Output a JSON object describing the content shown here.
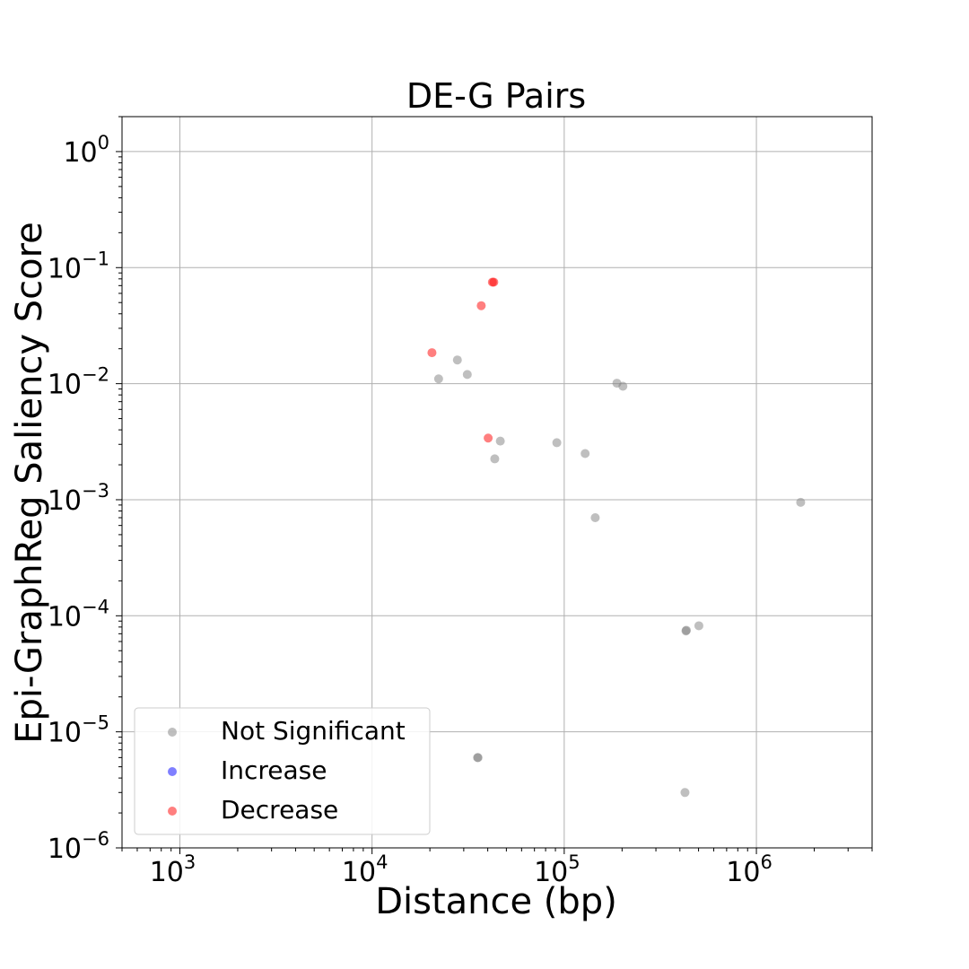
{
  "chart_data": {
    "type": "scatter",
    "title": "DE-G Pairs",
    "xlabel": "Distance (bp)",
    "ylabel": "Epi-GraphReg Saliency Score",
    "xscale": "log",
    "yscale": "log",
    "xlim": [
      500,
      4000000
    ],
    "ylim": [
      1e-06,
      2
    ],
    "grid": true,
    "legend_position": "lower-left",
    "x_ticks": [
      {
        "value": 1000,
        "base": "10",
        "exp": "3"
      },
      {
        "value": 10000,
        "base": "10",
        "exp": "4"
      },
      {
        "value": 100000,
        "base": "10",
        "exp": "5"
      },
      {
        "value": 1000000,
        "base": "10",
        "exp": "6"
      }
    ],
    "y_ticks": [
      {
        "value": 1,
        "base": "10",
        "exp": "0"
      },
      {
        "value": 0.1,
        "base": "10",
        "exp": "−1"
      },
      {
        "value": 0.01,
        "base": "10",
        "exp": "−2"
      },
      {
        "value": 0.001,
        "base": "10",
        "exp": "−3"
      },
      {
        "value": 0.0001,
        "base": "10",
        "exp": "−4"
      },
      {
        "value": 1e-05,
        "base": "10",
        "exp": "−5"
      },
      {
        "value": 1e-06,
        "base": "10",
        "exp": "−6"
      }
    ],
    "series": [
      {
        "name": "Not Significant",
        "color": "#808080",
        "points": [
          [
            27800,
            0.016
          ],
          [
            22200,
            0.011
          ],
          [
            31300,
            0.012
          ],
          [
            188000,
            0.0101
          ],
          [
            202000,
            0.0095
          ],
          [
            46500,
            0.0032
          ],
          [
            91500,
            0.0031
          ],
          [
            128500,
            0.0025
          ],
          [
            43500,
            0.00225
          ],
          [
            145000,
            0.0007
          ],
          [
            1700000,
            0.00095
          ],
          [
            432000,
            7.5e-05
          ],
          [
            430000,
            7.4e-05
          ],
          [
            502000,
            8.2e-05
          ],
          [
            35600,
            6e-06
          ],
          [
            35400,
            6e-06
          ],
          [
            425000,
            3e-06
          ]
        ]
      },
      {
        "name": "Increase",
        "color": "#0000ff",
        "points": []
      },
      {
        "name": "Decrease",
        "color": "#ff0000",
        "points": [
          [
            42300,
            0.075
          ],
          [
            43000,
            0.075
          ],
          [
            37000,
            0.047
          ],
          [
            20500,
            0.0185
          ],
          [
            40200,
            0.0034
          ]
        ]
      }
    ]
  }
}
